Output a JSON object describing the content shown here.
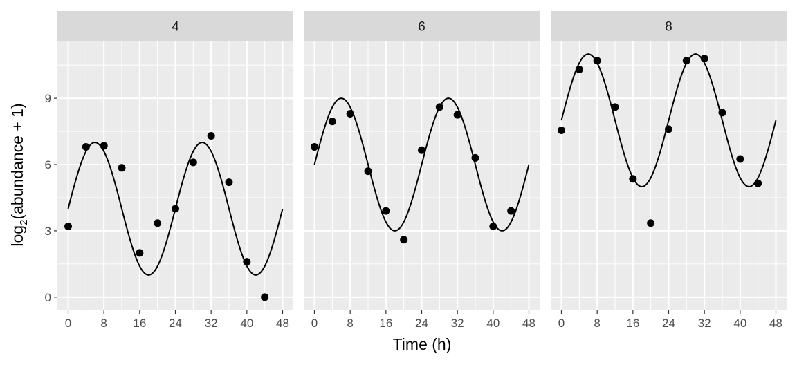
{
  "chart_data": {
    "type": "scatter",
    "xlabel": "Time (h)",
    "ylabel": {
      "main": "log",
      "sub": "2",
      "rest": "(abundance + 1)"
    },
    "x_ticks": [
      0,
      8,
      16,
      24,
      32,
      40,
      48
    ],
    "y_ticks": [
      0,
      3,
      6,
      9
    ],
    "xlim": [
      -2.4,
      50.4
    ],
    "ylim": [
      -0.6,
      11.6
    ],
    "panels": [
      {
        "strip": "4",
        "curve": {
          "mean": 4,
          "amplitude": 3,
          "period": 24,
          "peak_time": 6
        },
        "points": [
          [
            0,
            3.2
          ],
          [
            4,
            6.8
          ],
          [
            8,
            6.85
          ],
          [
            12,
            5.85
          ],
          [
            16,
            2.0
          ],
          [
            20,
            3.35
          ],
          [
            24,
            4.0
          ],
          [
            28,
            6.1
          ],
          [
            32,
            7.3
          ],
          [
            36,
            5.2
          ],
          [
            40,
            1.6
          ],
          [
            44,
            0.0
          ]
        ]
      },
      {
        "strip": "6",
        "curve": {
          "mean": 6,
          "amplitude": 3,
          "period": 24,
          "peak_time": 6
        },
        "points": [
          [
            0,
            6.8
          ],
          [
            4,
            7.95
          ],
          [
            8,
            8.3
          ],
          [
            12,
            5.7
          ],
          [
            16,
            3.9
          ],
          [
            20,
            2.6
          ],
          [
            24,
            6.65
          ],
          [
            28,
            8.6
          ],
          [
            32,
            8.25
          ],
          [
            36,
            6.3
          ],
          [
            40,
            3.2
          ],
          [
            44,
            3.9
          ]
        ]
      },
      {
        "strip": "8",
        "curve": {
          "mean": 8,
          "amplitude": 3,
          "period": 24,
          "peak_time": 6
        },
        "points": [
          [
            0,
            7.55
          ],
          [
            4,
            10.3
          ],
          [
            8,
            10.7
          ],
          [
            12,
            8.6
          ],
          [
            16,
            5.35
          ],
          [
            20,
            3.35
          ],
          [
            24,
            7.6
          ],
          [
            28,
            10.7
          ],
          [
            32,
            10.8
          ],
          [
            36,
            8.35
          ],
          [
            40,
            6.25
          ],
          [
            44,
            5.15
          ]
        ]
      }
    ],
    "colors": {
      "panel_bg": "#ebebeb",
      "strip_bg": "#d9d9d9",
      "grid": "#ffffff",
      "point": "#000000",
      "line": "#000000"
    }
  }
}
